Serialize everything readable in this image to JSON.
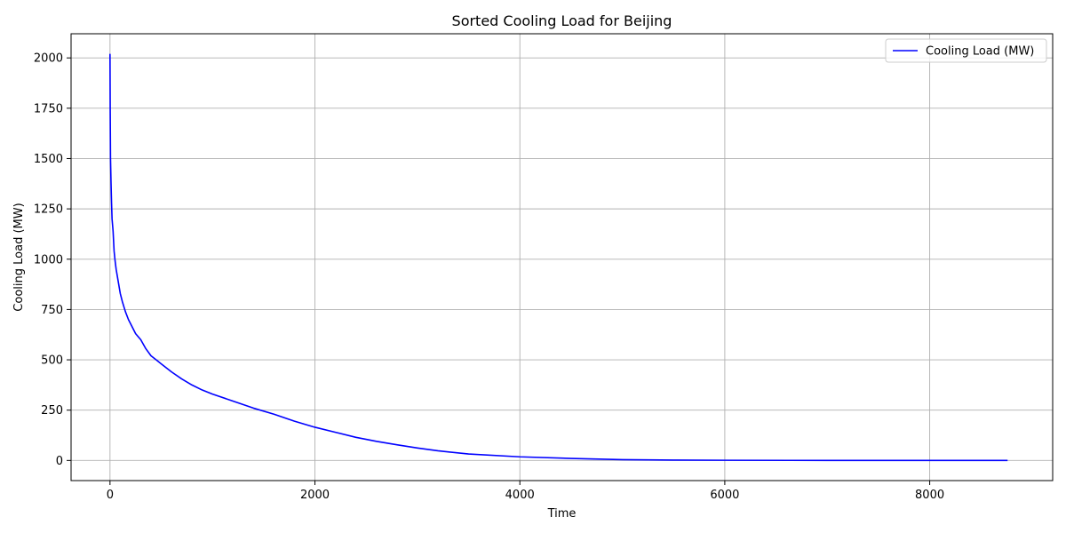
{
  "chart_data": {
    "type": "line",
    "title": "Sorted Cooling Load for Beijing",
    "xlabel": "Time",
    "ylabel": "Cooling Load (MW)",
    "xlim": [
      -380,
      9200
    ],
    "ylim": [
      -100,
      2120
    ],
    "xticks": [
      0,
      2000,
      4000,
      6000,
      8000
    ],
    "yticks": [
      0,
      250,
      500,
      750,
      1000,
      1250,
      1500,
      1750,
      2000
    ],
    "grid": true,
    "legend_position": "top-right",
    "series": [
      {
        "name": "Cooling Load (MW)",
        "color": "#0000ff",
        "x": [
          0,
          2,
          5,
          10,
          15,
          20,
          30,
          40,
          50,
          60,
          80,
          100,
          120,
          150,
          180,
          200,
          250,
          300,
          350,
          400,
          450,
          500,
          600,
          700,
          800,
          900,
          1000,
          1200,
          1400,
          1600,
          1800,
          2000,
          2200,
          2400,
          2600,
          2800,
          3000,
          3200,
          3500,
          4000,
          4500,
          5000,
          5500,
          6000,
          7000,
          8000,
          8760
        ],
        "y": [
          2020,
          1750,
          1500,
          1380,
          1280,
          1200,
          1140,
          1040,
          990,
          950,
          890,
          830,
          790,
          740,
          700,
          680,
          630,
          600,
          555,
          520,
          500,
          480,
          440,
          405,
          375,
          350,
          330,
          295,
          260,
          230,
          195,
          165,
          140,
          115,
          95,
          78,
          62,
          48,
          32,
          18,
          10,
          4,
          2,
          1,
          0,
          0,
          0
        ]
      }
    ]
  }
}
